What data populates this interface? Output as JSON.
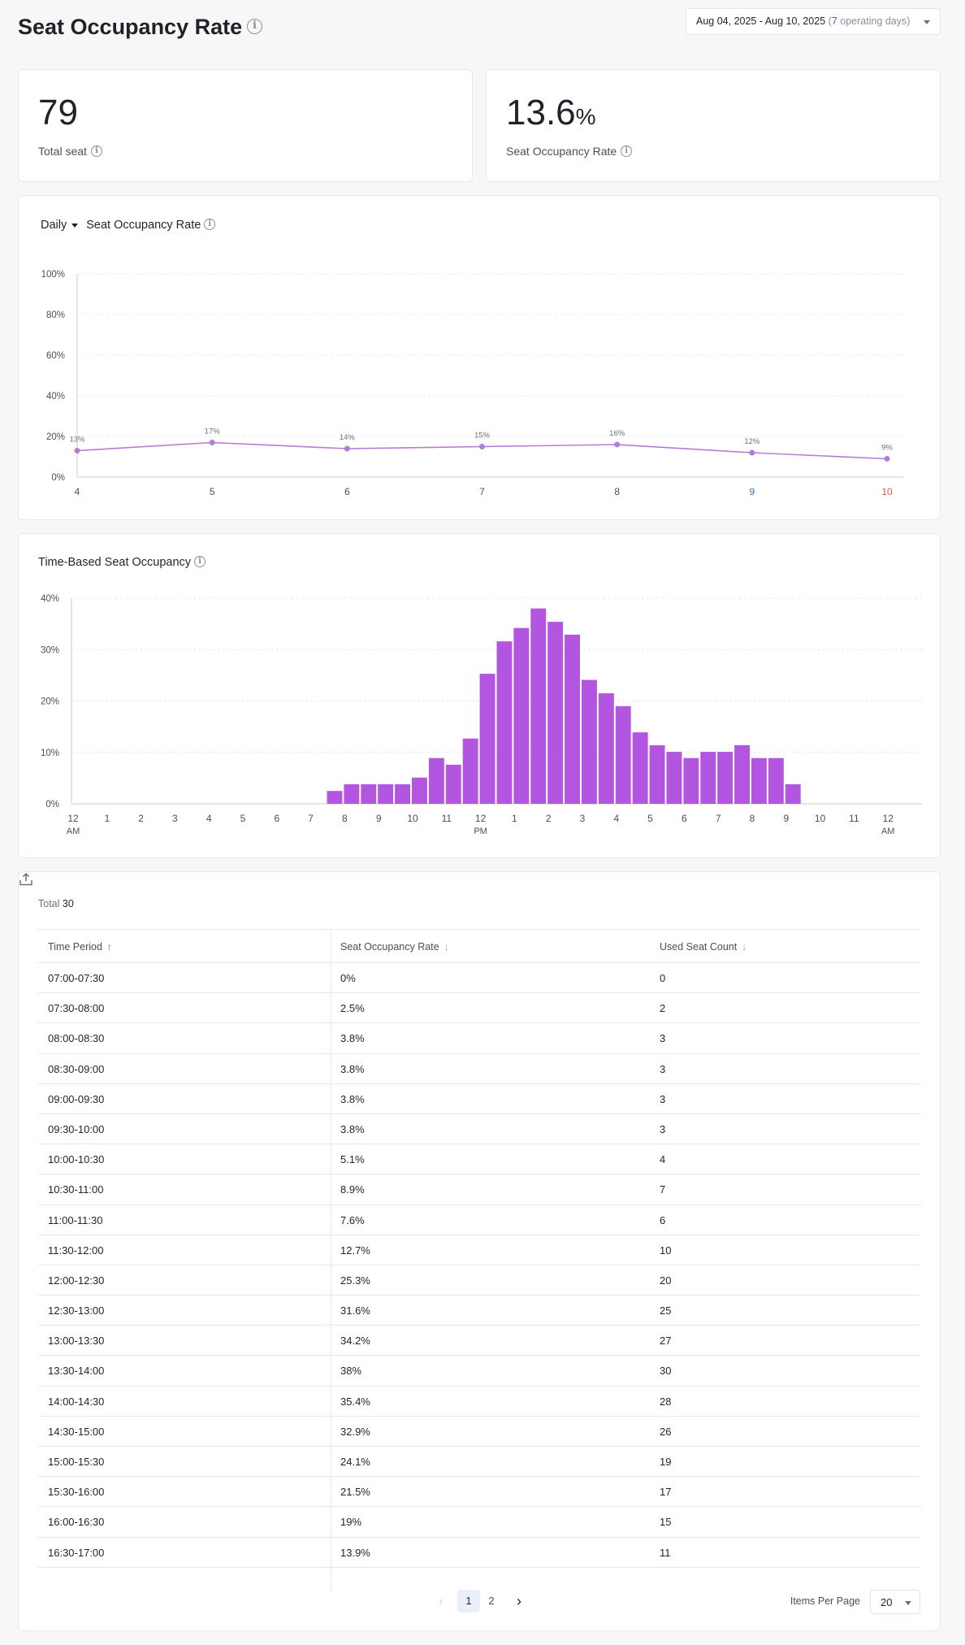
{
  "header": {
    "title": "Seat Occupancy Rate",
    "date_range": "Aug 04, 2025 - Aug 10, 2025",
    "operating_open": "(",
    "operating_days_num": "7",
    "operating_days_text": " operating days)"
  },
  "kpis": {
    "total_seat": {
      "value": "79",
      "label": "Total seat"
    },
    "occupancy": {
      "value": "13.6",
      "unit": "%",
      "label": "Seat Occupancy Rate"
    }
  },
  "daily_chart": {
    "period_selector": "Daily",
    "title": "Seat Occupancy Rate"
  },
  "time_chart": {
    "title": "Time-Based Seat Occupancy"
  },
  "chart_data": [
    {
      "type": "line",
      "x": [
        "4",
        "5",
        "6",
        "7",
        "8",
        "9",
        "10"
      ],
      "values": [
        13,
        17,
        14,
        15,
        16,
        12,
        9
      ],
      "data_labels": [
        "13%",
        "17%",
        "14%",
        "15%",
        "16%",
        "12%",
        "9%"
      ],
      "y_ticks": [
        "0%",
        "20%",
        "40%",
        "60%",
        "80%",
        "100%"
      ],
      "ylim": [
        0,
        100
      ],
      "grid": true,
      "colors": {
        "line": "#b57cd6",
        "saturday": "#3c6ec0",
        "sunday": "#d9534f"
      }
    },
    {
      "type": "bar",
      "x_ticks": [
        "12",
        "1",
        "2",
        "3",
        "4",
        "5",
        "6",
        "7",
        "8",
        "9",
        "10",
        "11",
        "12",
        "1",
        "2",
        "3",
        "4",
        "5",
        "6",
        "7",
        "8",
        "9",
        "10",
        "11",
        "12"
      ],
      "x_subticks": {
        "0": "AM",
        "12": "PM",
        "24": "AM"
      },
      "half_hour_start": 15,
      "values": [
        2.5,
        3.8,
        3.8,
        3.8,
        3.8,
        5.1,
        8.9,
        7.6,
        12.7,
        25.3,
        31.6,
        34.2,
        38,
        35.4,
        32.9,
        24.1,
        21.5,
        19,
        13.9,
        11.4,
        10.1,
        8.9,
        10.1,
        10.1,
        11.4,
        8.9,
        8.9,
        3.8
      ],
      "y_ticks": [
        "0%",
        "10%",
        "20%",
        "30%",
        "40%"
      ],
      "ylim": [
        0,
        40
      ],
      "grid": true,
      "colors": {
        "bar": "#b255e0"
      }
    }
  ],
  "table": {
    "total_label": "Total",
    "total_count": "30",
    "columns": [
      {
        "label": "Time Period",
        "arrow": "↑"
      },
      {
        "label": "Seat Occupancy Rate",
        "arrow": "↓"
      },
      {
        "label": "Used Seat Count",
        "arrow": "↓"
      }
    ],
    "rows": [
      [
        "07:00-07:30",
        "0%",
        "0"
      ],
      [
        "07:30-08:00",
        "2.5%",
        "2"
      ],
      [
        "08:00-08:30",
        "3.8%",
        "3"
      ],
      [
        "08:30-09:00",
        "3.8%",
        "3"
      ],
      [
        "09:00-09:30",
        "3.8%",
        "3"
      ],
      [
        "09:30-10:00",
        "3.8%",
        "3"
      ],
      [
        "10:00-10:30",
        "5.1%",
        "4"
      ],
      [
        "10:30-11:00",
        "8.9%",
        "7"
      ],
      [
        "11:00-11:30",
        "7.6%",
        "6"
      ],
      [
        "11:30-12:00",
        "12.7%",
        "10"
      ],
      [
        "12:00-12:30",
        "25.3%",
        "20"
      ],
      [
        "12:30-13:00",
        "31.6%",
        "25"
      ],
      [
        "13:00-13:30",
        "34.2%",
        "27"
      ],
      [
        "13:30-14:00",
        "38%",
        "30"
      ],
      [
        "14:00-14:30",
        "35.4%",
        "28"
      ],
      [
        "14:30-15:00",
        "32.9%",
        "26"
      ],
      [
        "15:00-15:30",
        "24.1%",
        "19"
      ],
      [
        "15:30-16:00",
        "21.5%",
        "17"
      ],
      [
        "16:00-16:30",
        "19%",
        "15"
      ],
      [
        "16:30-17:00",
        "13.9%",
        "11"
      ]
    ],
    "pagination": {
      "prev": "‹",
      "pages": [
        "1",
        "2"
      ],
      "current": "1",
      "next": "›",
      "items_per_page_label": "Items Per Page",
      "items_per_page": "20"
    }
  }
}
